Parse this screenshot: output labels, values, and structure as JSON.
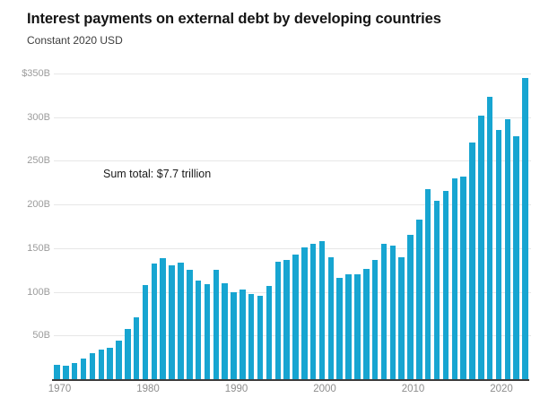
{
  "header": {
    "title": "Interest payments on external debt by developing countries",
    "subtitle": "Constant 2020 USD"
  },
  "chart_data": {
    "type": "bar",
    "title": "Interest payments on external debt by developing countries",
    "subtitle": "Constant 2020 USD",
    "annotation": "Sum total: $7.7 trillion",
    "unit": "billions of constant 2020 USD",
    "bar_color": "#17a5d1",
    "grid": true,
    "legend": "none",
    "ylim": [
      0,
      350
    ],
    "years": [
      1970,
      1971,
      1972,
      1973,
      1974,
      1975,
      1976,
      1977,
      1978,
      1979,
      1980,
      1981,
      1982,
      1983,
      1984,
      1985,
      1986,
      1987,
      1988,
      1989,
      1990,
      1991,
      1992,
      1993,
      1994,
      1995,
      1996,
      1997,
      1998,
      1999,
      2000,
      2001,
      2002,
      2003,
      2004,
      2005,
      2006,
      2007,
      2008,
      2009,
      2010,
      2011,
      2012,
      2013,
      2014,
      2015,
      2016,
      2017,
      2018,
      2019,
      2020,
      2021,
      2022,
      2023
    ],
    "values": [
      16,
      15,
      18,
      24,
      30,
      34,
      36,
      44,
      57,
      71,
      108,
      132,
      139,
      130,
      133,
      125,
      113,
      109,
      125,
      110,
      100,
      103,
      98,
      95,
      107,
      134,
      137,
      143,
      151,
      155,
      158,
      140,
      116,
      120,
      120,
      126,
      137,
      155,
      153,
      140,
      165,
      183,
      218,
      204,
      216,
      230,
      232,
      271,
      302,
      323,
      285,
      298,
      278,
      345
    ],
    "yticks": [
      {
        "value": 350,
        "label": "$350B"
      },
      {
        "value": 300,
        "label": "300B"
      },
      {
        "value": 250,
        "label": "250B"
      },
      {
        "value": 200,
        "label": "200B"
      },
      {
        "value": 150,
        "label": "150B"
      },
      {
        "value": 100,
        "label": "100B"
      },
      {
        "value": 50,
        "label": "50B"
      }
    ],
    "xticks": [
      {
        "value": 1970,
        "label": "1970"
      },
      {
        "value": 1980,
        "label": "1980"
      },
      {
        "value": 1990,
        "label": "1990"
      },
      {
        "value": 2000,
        "label": "2000"
      },
      {
        "value": 2010,
        "label": "2010"
      },
      {
        "value": 2020,
        "label": "2020"
      }
    ]
  }
}
